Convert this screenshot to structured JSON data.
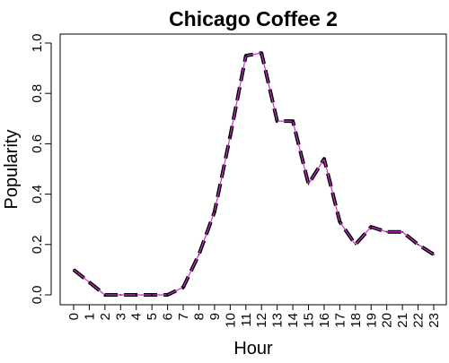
{
  "chart_data": {
    "type": "line",
    "title": "Chicago Coffee 2",
    "xlabel": "Hour",
    "ylabel": "Popularity",
    "xlim": [
      0,
      23
    ],
    "ylim": [
      0,
      1.0
    ],
    "x": [
      0,
      1,
      2,
      3,
      4,
      5,
      6,
      7,
      8,
      9,
      10,
      11,
      12,
      13,
      14,
      15,
      16,
      17,
      18,
      19,
      20,
      21,
      22,
      23
    ],
    "x_tick_labels": [
      "0",
      "1",
      "2",
      "3",
      "4",
      "5",
      "6",
      "7",
      "8",
      "9",
      "10",
      "11",
      "12",
      "13",
      "14",
      "15",
      "16",
      "17",
      "18",
      "19",
      "20",
      "21",
      "22",
      "23"
    ],
    "y_ticks": [
      0.0,
      0.2,
      0.4,
      0.6,
      0.8,
      1.0
    ],
    "y_tick_labels": [
      "0.0",
      "0.2",
      "0.4",
      "0.6",
      "0.8",
      "1.0"
    ],
    "grid": false,
    "series": [
      {
        "values": [
          0.1,
          0.05,
          0.0,
          0.0,
          0.0,
          0.0,
          0.0,
          0.03,
          0.16,
          0.33,
          0.63,
          0.95,
          0.96,
          0.69,
          0.69,
          0.44,
          0.54,
          0.29,
          0.2,
          0.27,
          0.25,
          0.25,
          0.2,
          0.16
        ],
        "color": "#000000",
        "overlay_color": "#cc33cc",
        "style": "dashed"
      }
    ]
  }
}
